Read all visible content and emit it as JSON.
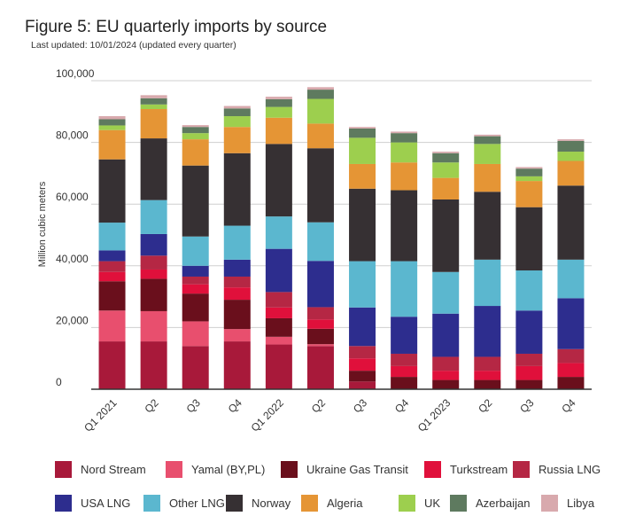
{
  "chart_data": {
    "type": "bar",
    "stacked": true,
    "title": "Figure 5: EU quarterly imports by source",
    "subtitle": "Last updated: 10/01/2024 (updated every quarter)",
    "ylabel": "Million cubic meters",
    "xlabel": "",
    "ylim": [
      0,
      100000
    ],
    "yticks": [
      0,
      20000,
      40000,
      60000,
      80000,
      100000
    ],
    "ytick_labels": [
      "0",
      "20,000",
      "40,000",
      "60,000",
      "80,000",
      "100,000"
    ],
    "categories": [
      "Q1 2021",
      "Q2",
      "Q3",
      "Q4",
      "Q1 2022",
      "Q2",
      "Q3",
      "Q4",
      "Q1 2023",
      "Q2",
      "Q3",
      "Q4"
    ],
    "series": [
      {
        "name": "Nord Stream",
        "color": "#a8193a",
        "values": [
          15500,
          15500,
          14000,
          15500,
          14500,
          14000,
          2500,
          0,
          0,
          0,
          0,
          0
        ]
      },
      {
        "name": "Yamal (BY,PL)",
        "color": "#e84f6e",
        "values": [
          10000,
          9800,
          8000,
          4000,
          2500,
          600,
          0,
          0,
          0,
          0,
          0,
          0
        ]
      },
      {
        "name": "Ukraine Gas Transit",
        "color": "#6a0f1c",
        "values": [
          9500,
          10500,
          9000,
          9500,
          6000,
          5000,
          3500,
          4000,
          3000,
          3000,
          3000,
          4000
        ]
      },
      {
        "name": "Turkstream",
        "color": "#e0103b",
        "values": [
          3000,
          3000,
          3000,
          4000,
          3500,
          3000,
          4000,
          3500,
          3000,
          3000,
          4500,
          4500
        ]
      },
      {
        "name": "Russia LNG",
        "color": "#b52744",
        "values": [
          3500,
          4500,
          2500,
          3500,
          5000,
          4000,
          4000,
          4000,
          4500,
          4500,
          4000,
          4500
        ]
      },
      {
        "name": "USA LNG",
        "color": "#2d2d8e",
        "values": [
          3500,
          7000,
          3500,
          5500,
          14000,
          15000,
          12500,
          12000,
          14000,
          16500,
          14000,
          16500
        ]
      },
      {
        "name": "Other LNG",
        "color": "#5bb7cf",
        "values": [
          9000,
          11000,
          9500,
          11000,
          10500,
          12500,
          15000,
          18000,
          13500,
          15000,
          13000,
          12500
        ]
      },
      {
        "name": "Norway",
        "color": "#363033",
        "values": [
          20500,
          20000,
          23000,
          23500,
          23500,
          24000,
          23500,
          23000,
          23500,
          22000,
          20500,
          24000
        ]
      },
      {
        "name": "Algeria",
        "color": "#e59535",
        "values": [
          9500,
          9500,
          8500,
          8500,
          8500,
          8000,
          8000,
          9000,
          7000,
          9000,
          8500,
          8000
        ]
      },
      {
        "name": "UK",
        "color": "#9dcf4e",
        "values": [
          1500,
          1500,
          2000,
          3500,
          3500,
          8000,
          8500,
          6500,
          5000,
          6500,
          1500,
          3000
        ]
      },
      {
        "name": "Azerbaijan",
        "color": "#5e7a5f",
        "values": [
          2000,
          2000,
          2000,
          2500,
          2500,
          3000,
          3000,
          3000,
          3000,
          2500,
          2500,
          3500
        ]
      },
      {
        "name": "Libya",
        "color": "#d8a9ad",
        "values": [
          1000,
          1000,
          600,
          800,
          800,
          800,
          500,
          500,
          500,
          500,
          500,
          500
        ]
      }
    ]
  }
}
